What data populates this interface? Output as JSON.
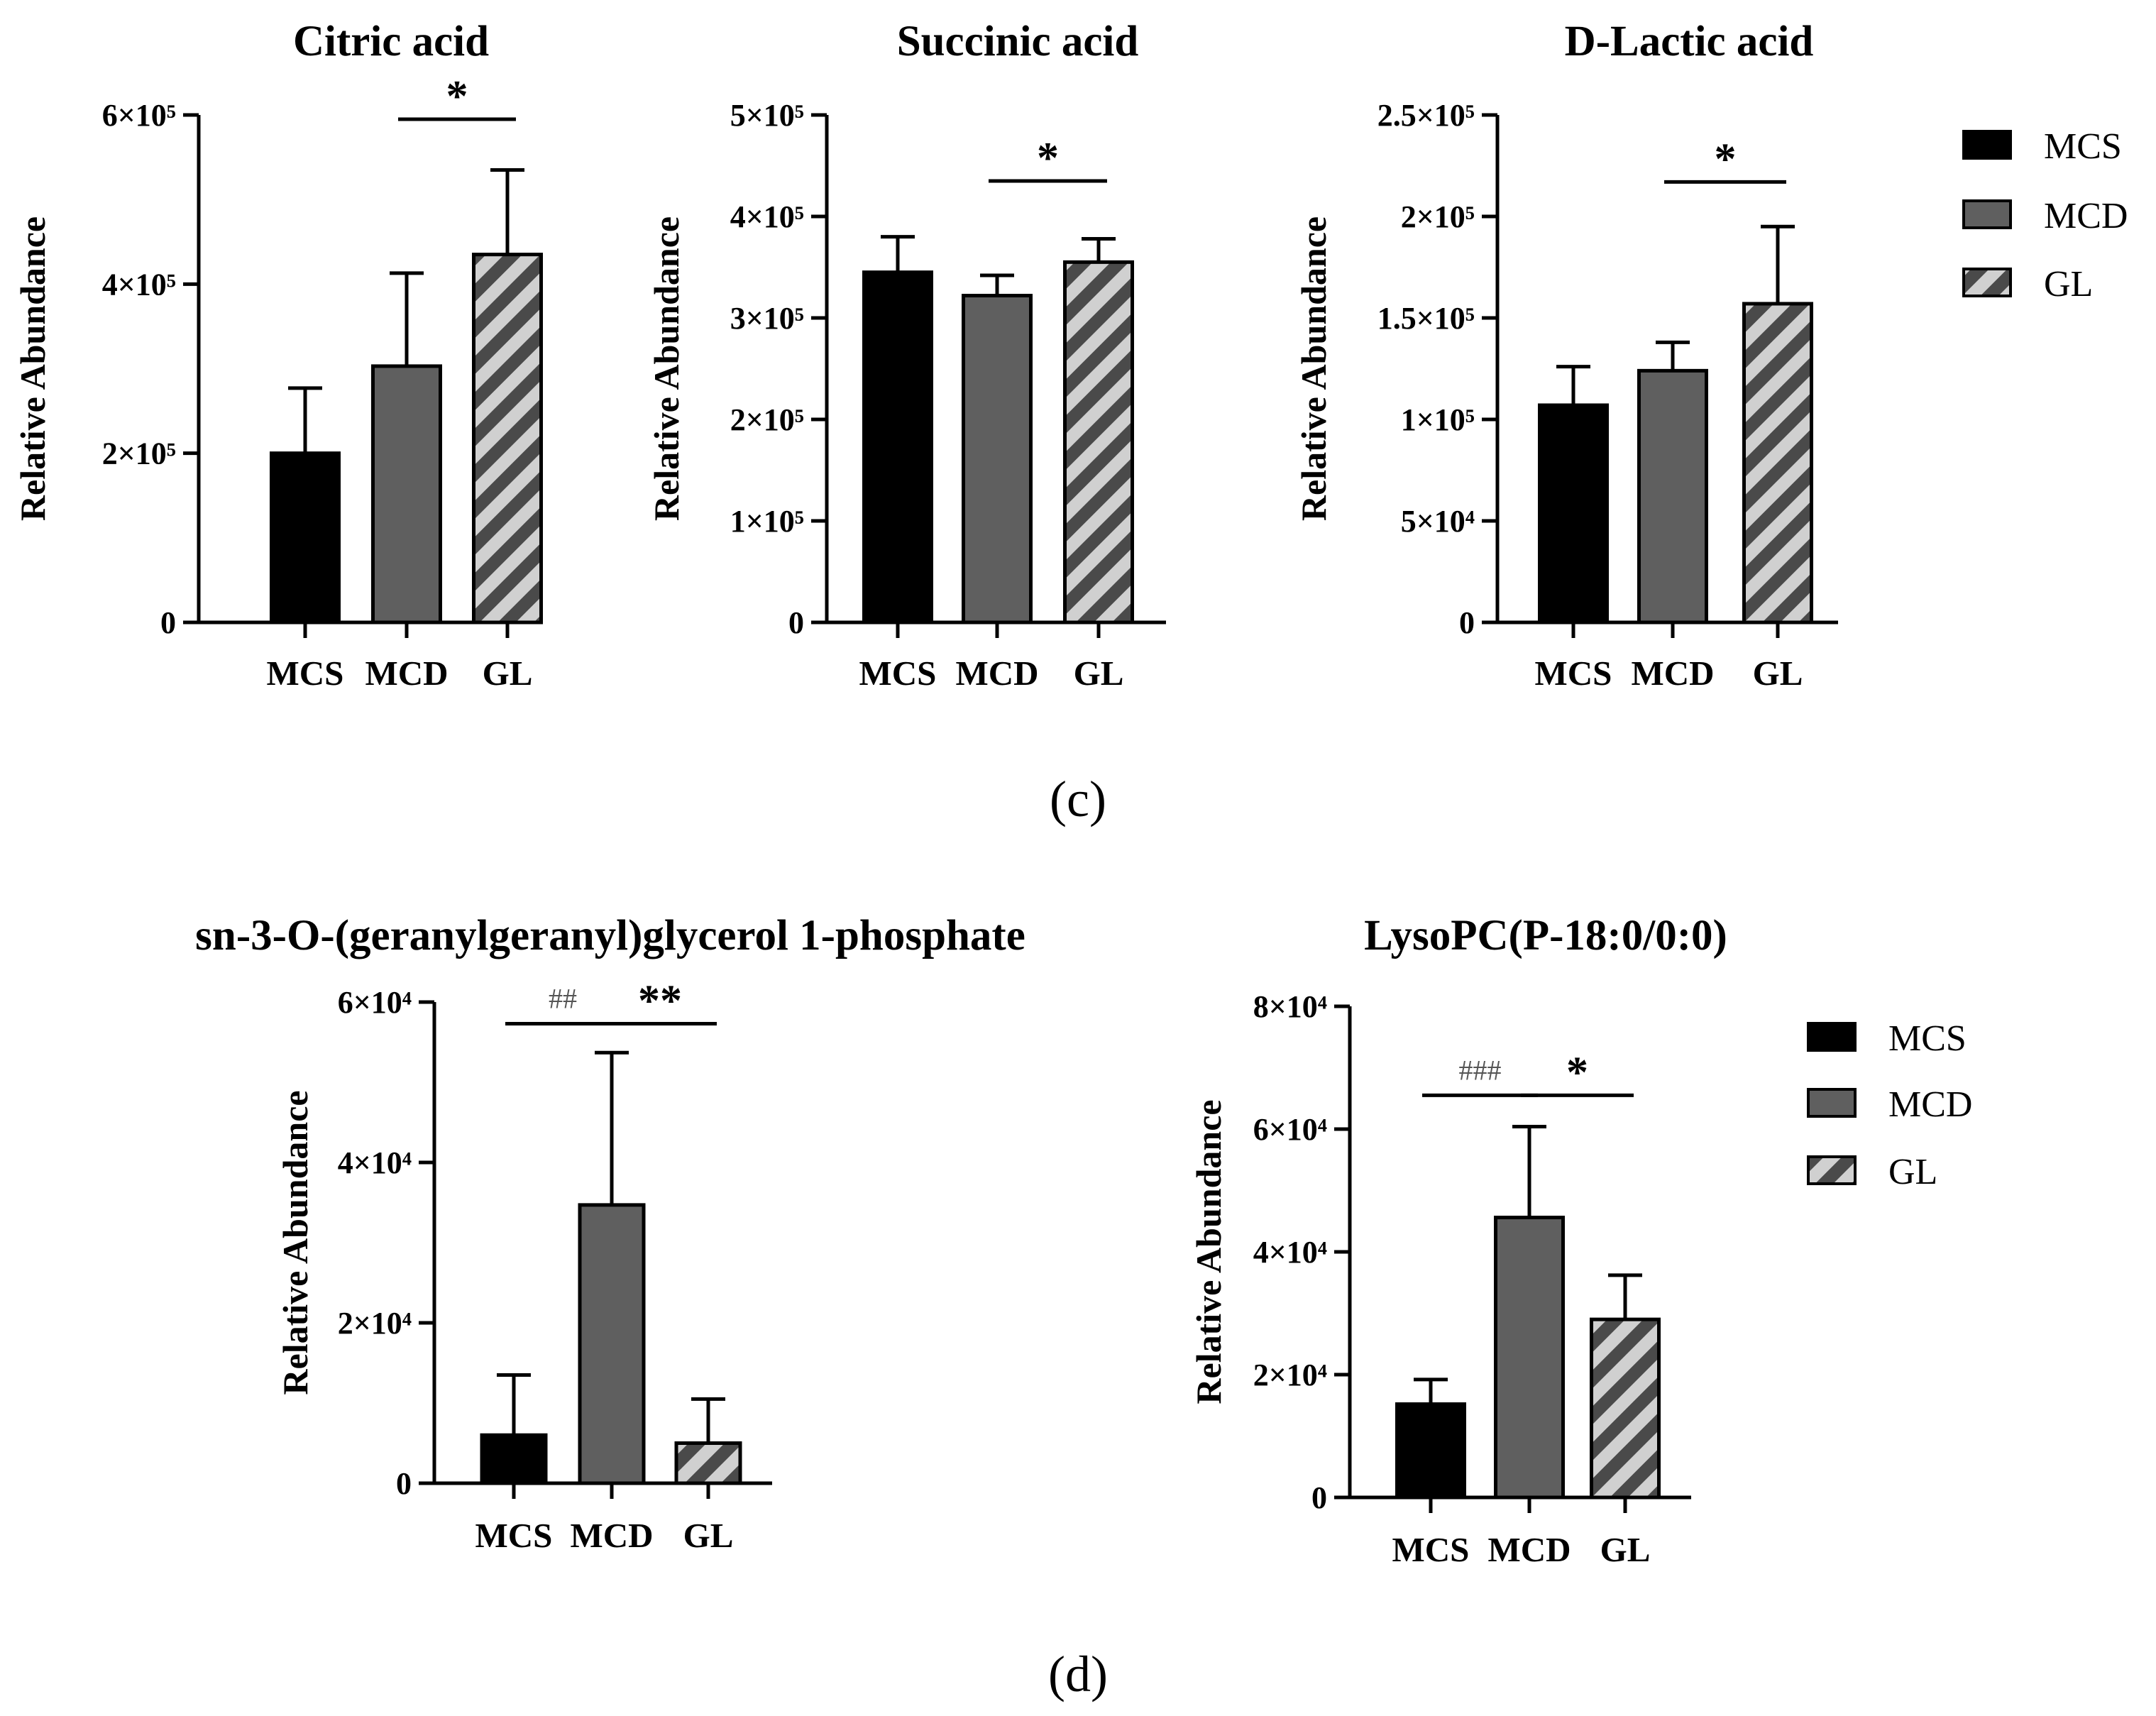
{
  "figure_labels": {
    "panel_c": "(c)",
    "panel_d": "(d)"
  },
  "colors": {
    "MCS": "#000000",
    "MCD": "#5f5f5f",
    "GL_stripe_dark": "#4a4a4a",
    "GL_stripe_light": "#d0d0d0"
  },
  "legends": [
    {
      "entries": [
        {
          "label": "MCS"
        },
        {
          "label": "MCD"
        },
        {
          "label": "GL"
        }
      ]
    },
    {
      "entries": [
        {
          "label": "MCS"
        },
        {
          "label": "MCD"
        },
        {
          "label": "GL"
        }
      ]
    }
  ],
  "chart_data": [
    {
      "type": "bar",
      "title": "Citric acid",
      "ylabel": "Relative Abundance",
      "xlabel": "",
      "categories": [
        "MCS",
        "MCD",
        "GL"
      ],
      "values": [
        200000,
        303000,
        435000
      ],
      "errors": [
        77000,
        110000,
        100000
      ],
      "ylim": [
        0,
        600000
      ],
      "yticks": [
        0,
        200000,
        400000,
        600000
      ],
      "ytick_labels": [
        "0",
        "2×10⁵",
        "4×10⁵",
        "6×10⁵"
      ],
      "annotations": [
        {
          "text": "*",
          "from": "MCD",
          "to": "GL",
          "level": 595000
        }
      ]
    },
    {
      "type": "bar",
      "title": "Succinic acid",
      "ylabel": "Relative Abundance",
      "xlabel": "",
      "categories": [
        "MCS",
        "MCD",
        "GL"
      ],
      "values": [
        345000,
        322000,
        355000
      ],
      "errors": [
        35000,
        20000,
        23000
      ],
      "ylim": [
        0,
        500000
      ],
      "yticks": [
        0,
        100000,
        200000,
        300000,
        400000,
        500000
      ],
      "ytick_labels": [
        "0",
        "1×10⁵",
        "2×10⁵",
        "3×10⁵",
        "4×10⁵",
        "5×10⁵"
      ],
      "annotations": [
        {
          "text": "*",
          "from": "MCD",
          "to": "GL",
          "level": 435000
        }
      ]
    },
    {
      "type": "bar",
      "title": "D-Lactic acid",
      "ylabel": "Relative Abundance",
      "xlabel": "",
      "categories": [
        "MCS",
        "MCD",
        "GL"
      ],
      "values": [
        107000,
        124000,
        157000
      ],
      "errors": [
        19000,
        14000,
        38000
      ],
      "ylim": [
        0,
        250000
      ],
      "yticks": [
        0,
        50000,
        100000,
        150000,
        200000,
        250000
      ],
      "ytick_labels": [
        "0",
        "5×10⁴",
        "1×10⁵",
        "1.5×10⁵",
        "2×10⁵",
        "2.5×10⁵"
      ],
      "annotations": [
        {
          "text": "*",
          "from": "MCD",
          "to": "GL",
          "level": 217000
        }
      ]
    },
    {
      "type": "bar",
      "title": "sn-3-O-(geranylgeranyl)glycerol 1-phosphate",
      "ylabel": "Relative Abundance",
      "xlabel": "",
      "categories": [
        "MCS",
        "MCD",
        "GL"
      ],
      "values": [
        6000,
        34700,
        5000
      ],
      "errors": [
        7500,
        19000,
        5500
      ],
      "ylim": [
        0,
        60000
      ],
      "yticks": [
        0,
        20000,
        40000,
        60000
      ],
      "ytick_labels": [
        "0",
        "2×10⁴",
        "4×10⁴",
        "6×10⁴"
      ],
      "annotations": [
        {
          "text": "##",
          "from": "MCS",
          "to": "MCD",
          "level": 57300,
          "style": "hash"
        },
        {
          "text": "**",
          "from": "MCD",
          "to": "GL",
          "level": 57300
        }
      ]
    },
    {
      "type": "bar",
      "title": "LysoPC(P-18:0/0:0)",
      "ylabel": "Relative Abundance",
      "xlabel": "",
      "categories": [
        "MCS",
        "MCD",
        "GL"
      ],
      "values": [
        15200,
        45600,
        29000
      ],
      "errors": [
        4000,
        14800,
        7200
      ],
      "ylim": [
        0,
        80000
      ],
      "yticks": [
        0,
        20000,
        40000,
        60000,
        80000
      ],
      "ytick_labels": [
        "0",
        "2×10⁴",
        "4×10⁴",
        "6×10⁴",
        "8×10⁴"
      ],
      "annotations": [
        {
          "text": "###",
          "from": "MCS",
          "to": "MCD",
          "level": 65500,
          "style": "hash"
        },
        {
          "text": "*",
          "from": "MCD",
          "to": "GL",
          "level": 65500
        }
      ]
    }
  ]
}
